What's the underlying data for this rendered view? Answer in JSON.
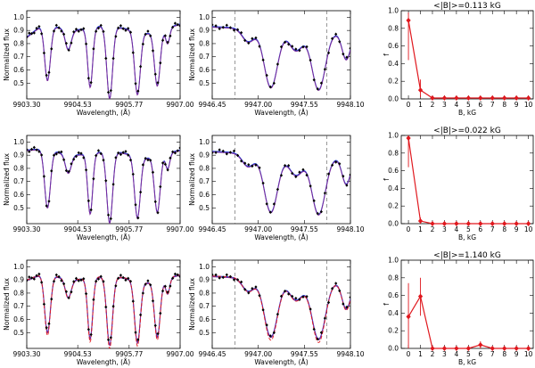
{
  "figure": {
    "colors": {
      "observed": "#000000",
      "model_a": "#1f3fd6",
      "model_b": "#7a2a9a",
      "model_c": "#e0181e",
      "guide": "#555555",
      "dist": "#e0181e"
    }
  },
  "chart_data": [
    {
      "type": "line",
      "panel": "row1-left",
      "xlabel": "Wavelength, (Å)",
      "ylabel": "Normalized flux",
      "xlim": [
        9903.3,
        9907.0
      ],
      "ylim": [
        0.38,
        1.05
      ],
      "xticks": [
        "9903.30",
        "9904.53",
        "9905.77",
        "9907.00"
      ],
      "yticks": [
        "0.5",
        "0.6",
        "0.7",
        "0.8",
        "0.9",
        "1.0"
      ],
      "continuum": [
        [
          9903.3,
          0.85
        ],
        [
          9903.7,
          0.95
        ],
        [
          9904.4,
          0.9
        ],
        [
          9905.2,
          0.94
        ],
        [
          9905.6,
          0.92
        ],
        [
          9906.2,
          0.88
        ],
        [
          9907.0,
          0.95
        ]
      ],
      "lines": [
        [
          9903.8,
          0.42,
          0.07
        ],
        [
          9904.3,
          0.15,
          0.07
        ],
        [
          9904.83,
          0.45,
          0.06
        ],
        [
          9905.3,
          0.55,
          0.07
        ],
        [
          9905.97,
          0.48,
          0.07
        ],
        [
          9906.45,
          0.42,
          0.07
        ],
        [
          9906.7,
          0.12,
          0.05
        ]
      ],
      "series": [
        {
          "name": "observed",
          "style": "points"
        },
        {
          "name": "model-1",
          "style": "solid-blue"
        },
        {
          "name": "model-2",
          "style": "solid-purple"
        }
      ]
    },
    {
      "type": "line",
      "panel": "row1-mid",
      "xlabel": "Wavelength, (Å)",
      "ylabel": "Normalized flux",
      "xlim": [
        9946.45,
        9948.1
      ],
      "ylim": [
        0.38,
        1.05
      ],
      "xticks": [
        "9946.45",
        "9947.00",
        "9947.55",
        "9948.10"
      ],
      "yticks": [
        "0.5",
        "0.6",
        "0.7",
        "0.8",
        "0.9",
        "1.0"
      ],
      "vlines": [
        9946.72,
        9947.82
      ],
      "continuum": [
        [
          9946.45,
          0.93
        ],
        [
          9948.1,
          0.88
        ]
      ],
      "lines": [
        [
          9946.88,
          0.1,
          0.07
        ],
        [
          9947.15,
          0.44,
          0.08
        ],
        [
          9947.45,
          0.15,
          0.08
        ],
        [
          9947.72,
          0.44,
          0.08
        ],
        [
          9948.05,
          0.2,
          0.05
        ]
      ],
      "series": [
        {
          "name": "observed",
          "style": "points"
        },
        {
          "name": "model-1",
          "style": "solid-blue"
        },
        {
          "name": "model-2",
          "style": "solid-purple"
        }
      ]
    },
    {
      "type": "scatter",
      "panel": "row1-right",
      "title": "<|B|>=0.113 kG",
      "xlabel": "B, kG",
      "ylabel": "f",
      "xlim": [
        -0.6,
        10.4
      ],
      "ylim": [
        0,
        1.0
      ],
      "xticks": [
        "0",
        "1",
        "2",
        "3",
        "4",
        "5",
        "6",
        "7",
        "8",
        "9",
        "10"
      ],
      "yticks": [
        "0.0",
        "0.2",
        "0.4",
        "0.6",
        "0.8",
        "1.0"
      ],
      "x": [
        0,
        1,
        2,
        3,
        4,
        5,
        6,
        7,
        8,
        9,
        10
      ],
      "values": [
        0.89,
        0.1,
        0.01,
        0.01,
        0.01,
        0.01,
        0.01,
        0.01,
        0.01,
        0.01,
        0.01
      ],
      "err_low": [
        0.44,
        0.02,
        0,
        0,
        0,
        0,
        0,
        0,
        0,
        0,
        0
      ],
      "err_high": [
        0.98,
        0.22,
        0,
        0,
        0,
        0,
        0,
        0,
        0,
        0,
        0
      ]
    },
    {
      "type": "line",
      "panel": "row2-left",
      "xlabel": "Wavelength, (Å)",
      "ylabel": "Normalized flux",
      "xlim": [
        9903.3,
        9907.0
      ],
      "ylim": [
        0.38,
        1.05
      ],
      "xticks": [
        "9903.30",
        "9904.53",
        "9905.77",
        "9907.00"
      ],
      "yticks": [
        "0.5",
        "0.6",
        "0.7",
        "0.8",
        "0.9",
        "1.0"
      ],
      "continuum": [
        [
          9903.3,
          0.94
        ],
        [
          9903.7,
          0.95
        ],
        [
          9904.4,
          0.9
        ],
        [
          9905.2,
          0.93
        ],
        [
          9905.6,
          0.92
        ],
        [
          9906.2,
          0.88
        ],
        [
          9907.0,
          0.94
        ]
      ],
      "lines": [
        [
          9903.8,
          0.44,
          0.07
        ],
        [
          9904.3,
          0.14,
          0.07
        ],
        [
          9904.83,
          0.46,
          0.06
        ],
        [
          9905.3,
          0.54,
          0.07
        ],
        [
          9905.97,
          0.47,
          0.07
        ],
        [
          9906.45,
          0.43,
          0.07
        ],
        [
          9906.7,
          0.12,
          0.05
        ]
      ],
      "series": [
        {
          "name": "observed",
          "style": "points"
        },
        {
          "name": "model-1",
          "style": "solid-blue"
        },
        {
          "name": "model-2",
          "style": "solid-purple"
        }
      ]
    },
    {
      "type": "line",
      "panel": "row2-mid",
      "xlabel": "Wavelength, (Å)",
      "ylabel": "Normalized flux",
      "xlim": [
        9946.45,
        9948.1
      ],
      "ylim": [
        0.38,
        1.05
      ],
      "xticks": [
        "9946.45",
        "9947.00",
        "9947.55",
        "9948.10"
      ],
      "yticks": [
        "0.5",
        "0.6",
        "0.7",
        "0.8",
        "0.9",
        "1.0"
      ],
      "vlines": [
        9946.72,
        9947.82
      ],
      "continuum": [
        [
          9946.45,
          0.93
        ],
        [
          9948.1,
          0.88
        ]
      ],
      "lines": [
        [
          9946.88,
          0.1,
          0.07
        ],
        [
          9947.15,
          0.44,
          0.08
        ],
        [
          9947.45,
          0.15,
          0.08
        ],
        [
          9947.72,
          0.44,
          0.08
        ],
        [
          9948.05,
          0.2,
          0.05
        ]
      ],
      "series": [
        {
          "name": "observed",
          "style": "points"
        },
        {
          "name": "model-1",
          "style": "solid-blue"
        },
        {
          "name": "model-2",
          "style": "solid-purple"
        }
      ]
    },
    {
      "type": "scatter",
      "panel": "row2-right",
      "title": "<|B|>=0.022 kG",
      "xlabel": "B, kG",
      "ylabel": "f",
      "xlim": [
        -0.6,
        10.4
      ],
      "ylim": [
        0,
        1.0
      ],
      "xticks": [
        "0",
        "1",
        "2",
        "3",
        "4",
        "5",
        "6",
        "7",
        "8",
        "9",
        "10"
      ],
      "yticks": [
        "0.0",
        "0.2",
        "0.4",
        "0.6",
        "0.8",
        "1.0"
      ],
      "x": [
        0,
        1,
        2,
        3,
        4,
        5,
        6,
        7,
        8,
        9,
        10
      ],
      "values": [
        0.97,
        0.03,
        0.0,
        0.0,
        0.0,
        0.0,
        0.0,
        0.0,
        0.0,
        0.0,
        0.0
      ],
      "err_low": [
        0.64,
        0.0,
        0,
        0,
        0,
        0,
        0,
        0,
        0,
        0,
        0
      ],
      "err_high": [
        1.0,
        0.07,
        0,
        0,
        0,
        0,
        0,
        0,
        0,
        0,
        0
      ]
    },
    {
      "type": "line",
      "panel": "row3-left",
      "xlabel": "Wavelength, (Å)",
      "ylabel": "Normalized flux",
      "xlim": [
        9903.3,
        9907.0
      ],
      "ylim": [
        0.38,
        1.05
      ],
      "xticks": [
        "9903.30",
        "9904.53",
        "9905.77",
        "9907.00"
      ],
      "yticks": [
        "0.5",
        "0.6",
        "0.7",
        "0.8",
        "0.9",
        "1.0"
      ],
      "continuum": [
        [
          9903.3,
          0.9
        ],
        [
          9903.7,
          0.95
        ],
        [
          9904.4,
          0.9
        ],
        [
          9905.2,
          0.93
        ],
        [
          9905.6,
          0.92
        ],
        [
          9906.2,
          0.88
        ],
        [
          9907.0,
          0.94
        ]
      ],
      "lines": [
        [
          9903.8,
          0.44,
          0.07
        ],
        [
          9904.3,
          0.14,
          0.07
        ],
        [
          9904.83,
          0.46,
          0.06
        ],
        [
          9905.3,
          0.52,
          0.07
        ],
        [
          9905.97,
          0.47,
          0.07
        ],
        [
          9906.45,
          0.43,
          0.07
        ],
        [
          9906.7,
          0.12,
          0.05
        ]
      ],
      "series": [
        {
          "name": "observed",
          "style": "points"
        },
        {
          "name": "model-1",
          "style": "solid-blue"
        },
        {
          "name": "model-2",
          "style": "solid-purple"
        },
        {
          "name": "model-3",
          "style": "dashed-red"
        }
      ]
    },
    {
      "type": "line",
      "panel": "row3-mid",
      "xlabel": "Wavelength, (Å)",
      "ylabel": "Normalized flux",
      "xlim": [
        9946.45,
        9948.1
      ],
      "ylim": [
        0.38,
        1.05
      ],
      "xticks": [
        "9946.45",
        "9947.00",
        "9947.55",
        "9948.10"
      ],
      "yticks": [
        "0.5",
        "0.6",
        "0.7",
        "0.8",
        "0.9",
        "1.0"
      ],
      "vlines": [
        9946.72,
        9947.82
      ],
      "continuum": [
        [
          9946.45,
          0.93
        ],
        [
          9948.1,
          0.88
        ]
      ],
      "lines": [
        [
          9946.88,
          0.1,
          0.07
        ],
        [
          9947.15,
          0.44,
          0.08
        ],
        [
          9947.45,
          0.15,
          0.08
        ],
        [
          9947.72,
          0.44,
          0.08
        ],
        [
          9948.05,
          0.2,
          0.05
        ]
      ],
      "series": [
        {
          "name": "observed",
          "style": "points"
        },
        {
          "name": "model-1",
          "style": "solid-blue"
        },
        {
          "name": "model-2",
          "style": "solid-purple"
        },
        {
          "name": "model-3",
          "style": "dashed-red"
        }
      ]
    },
    {
      "type": "scatter",
      "panel": "row3-right",
      "title": "<|B|>=1.140 kG",
      "xlabel": "B, kG",
      "ylabel": "f",
      "xlim": [
        -0.6,
        10.4
      ],
      "ylim": [
        0,
        1.0
      ],
      "xticks": [
        "0",
        "1",
        "2",
        "3",
        "4",
        "5",
        "6",
        "7",
        "8",
        "9",
        "10"
      ],
      "yticks": [
        "0.0",
        "0.2",
        "0.4",
        "0.6",
        "0.8",
        "1.0"
      ],
      "x": [
        0,
        1,
        2,
        3,
        4,
        5,
        6,
        7,
        8,
        9,
        10
      ],
      "values": [
        0.36,
        0.59,
        0.0,
        0.0,
        0.0,
        0.0,
        0.04,
        0.0,
        0.0,
        0.0,
        0.0
      ],
      "err_low": [
        0.0,
        0.37,
        0,
        0,
        0,
        0,
        0.0,
        0,
        0,
        0,
        0
      ],
      "err_high": [
        0.74,
        0.8,
        0,
        0,
        0,
        0,
        0.08,
        0,
        0,
        0,
        0
      ]
    }
  ]
}
